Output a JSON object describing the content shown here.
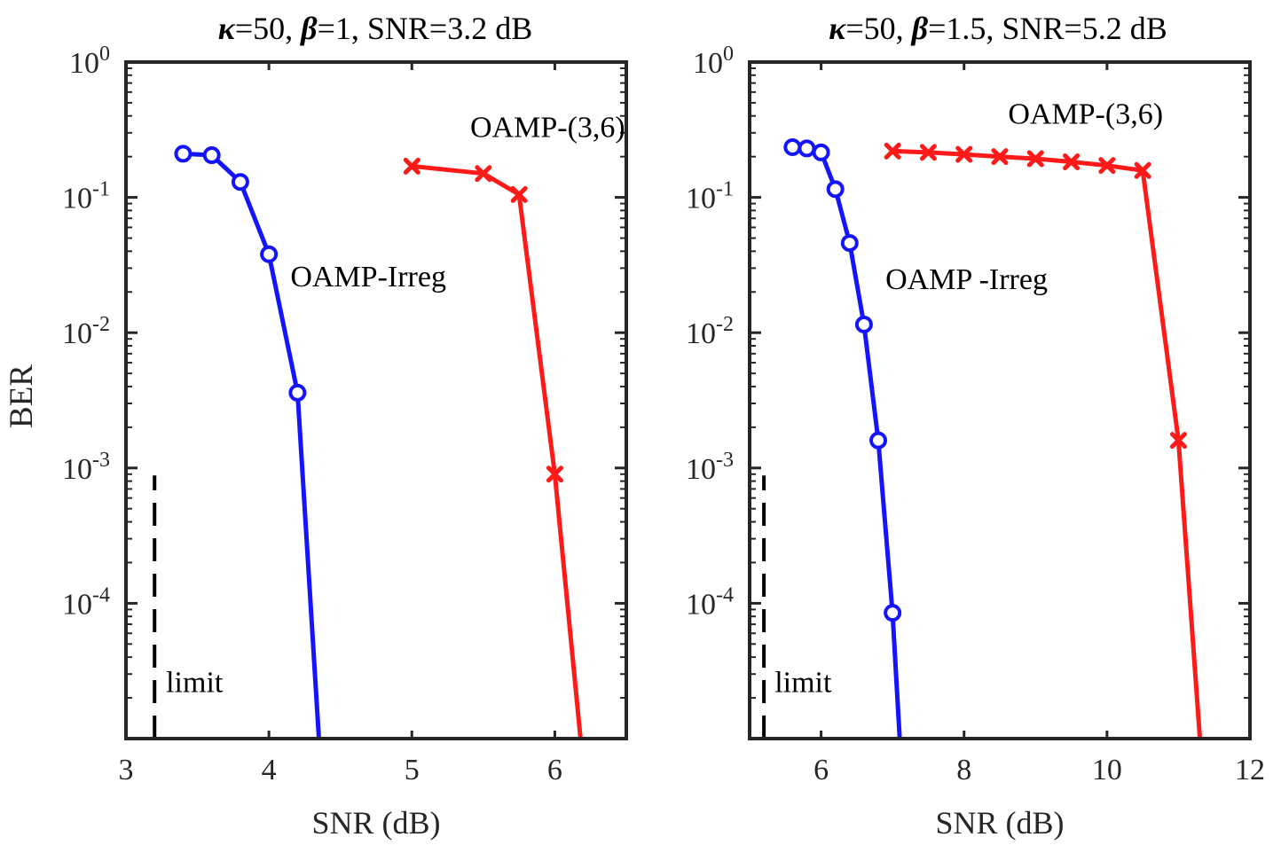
{
  "figure": {
    "shared_ylabel": "BER"
  },
  "colors": {
    "irreg": "#1414ff",
    "reg": "#ff1a1a",
    "axis": "#262626",
    "limit": "#000000"
  },
  "chart_data": [
    {
      "type": "line",
      "title_parts": {
        "kappa_sym": "κ",
        "kappa_val": "=50, ",
        "beta_sym": "β",
        "beta_val": "=1, SNR=3.2 dB"
      },
      "xlabel": "SNR (dB)",
      "ylabel": "BER",
      "yscale": "log",
      "xlim": [
        3,
        6.5
      ],
      "ylim": [
        1e-05,
        1
      ],
      "xticks": [
        3,
        4,
        5,
        6
      ],
      "yticks": [
        {
          "value": 1,
          "base": "10",
          "exp": "0"
        },
        {
          "value": 0.1,
          "base": "10",
          "exp": "-1"
        },
        {
          "value": 0.01,
          "base": "10",
          "exp": "-2"
        },
        {
          "value": 0.001,
          "base": "10",
          "exp": "-3"
        },
        {
          "value": 0.0001,
          "base": "10",
          "exp": "-4"
        }
      ],
      "series": [
        {
          "name": "OAMP-Irreg",
          "marker": "circle",
          "color": "#1414ff",
          "points": [
            [
              3.4,
              0.21
            ],
            [
              3.6,
              0.205
            ],
            [
              3.8,
              0.13
            ],
            [
              4.0,
              0.038
            ],
            [
              4.2,
              0.0036
            ]
          ],
          "tail": [
            4.35,
            1e-05
          ]
        },
        {
          "name": "OAMP-(3,6)",
          "marker": "x",
          "color": "#ff1a1a",
          "points": [
            [
              5.0,
              0.17
            ],
            [
              5.5,
              0.15
            ],
            [
              5.75,
              0.105
            ],
            [
              6.0,
              0.0009
            ]
          ],
          "tail": [
            6.18,
            1e-05
          ]
        }
      ],
      "annotations": [
        {
          "text": "OAMP-(3,6)",
          "x": 5.95,
          "y": 0.28,
          "anchor": "middle"
        },
        {
          "text": "OAMP-Irreg",
          "x": 4.15,
          "y": 0.022,
          "anchor": "start"
        },
        {
          "text": "limit",
          "x": 3.28,
          "y": 2.2e-05,
          "anchor": "start"
        }
      ],
      "limit": {
        "x": 3.2,
        "y_top": 0.00088,
        "label": "limit"
      }
    },
    {
      "type": "line",
      "title_parts": {
        "kappa_sym": "κ",
        "kappa_val": "=50, ",
        "beta_sym": "β",
        "beta_val": "=1.5, SNR=5.2 dB"
      },
      "xlabel": "SNR (dB)",
      "ylabel": "",
      "yscale": "log",
      "xlim": [
        5,
        12
      ],
      "ylim": [
        1e-05,
        1
      ],
      "xticks": [
        6,
        8,
        10,
        12
      ],
      "yticks": [
        {
          "value": 1,
          "base": "10",
          "exp": "0"
        },
        {
          "value": 0.1,
          "base": "10",
          "exp": "-1"
        },
        {
          "value": 0.01,
          "base": "10",
          "exp": "-2"
        },
        {
          "value": 0.001,
          "base": "10",
          "exp": "-3"
        },
        {
          "value": 0.0001,
          "base": "10",
          "exp": "-4"
        }
      ],
      "series": [
        {
          "name": "OAMP-Irreg",
          "marker": "circle",
          "color": "#1414ff",
          "points": [
            [
              5.6,
              0.235
            ],
            [
              5.8,
              0.23
            ],
            [
              6.0,
              0.215
            ],
            [
              6.2,
              0.115
            ],
            [
              6.4,
              0.046
            ],
            [
              6.6,
              0.0115
            ],
            [
              6.8,
              0.0016
            ],
            [
              7.0,
              8.5e-05
            ]
          ],
          "tail": [
            7.1,
            1e-05
          ]
        },
        {
          "name": "OAMP-(3,6)",
          "marker": "x",
          "color": "#ff1a1a",
          "points": [
            [
              7.0,
              0.22
            ],
            [
              7.5,
              0.215
            ],
            [
              8.0,
              0.208
            ],
            [
              8.5,
              0.2
            ],
            [
              9.0,
              0.193
            ],
            [
              9.5,
              0.183
            ],
            [
              10.0,
              0.172
            ],
            [
              10.5,
              0.158
            ],
            [
              11.0,
              0.0016
            ]
          ],
          "tail": [
            11.3,
            1e-05
          ]
        }
      ],
      "annotations": [
        {
          "text": "OAMP-(3,6)",
          "x": 9.7,
          "y": 0.35,
          "anchor": "middle"
        },
        {
          "text": "OAMP -Irreg",
          "x": 6.9,
          "y": 0.021,
          "anchor": "start"
        },
        {
          "text": "limit",
          "x": 5.35,
          "y": 2.2e-05,
          "anchor": "start"
        }
      ],
      "limit": {
        "x": 5.2,
        "y_top": 0.00088,
        "label": "limit"
      }
    }
  ]
}
